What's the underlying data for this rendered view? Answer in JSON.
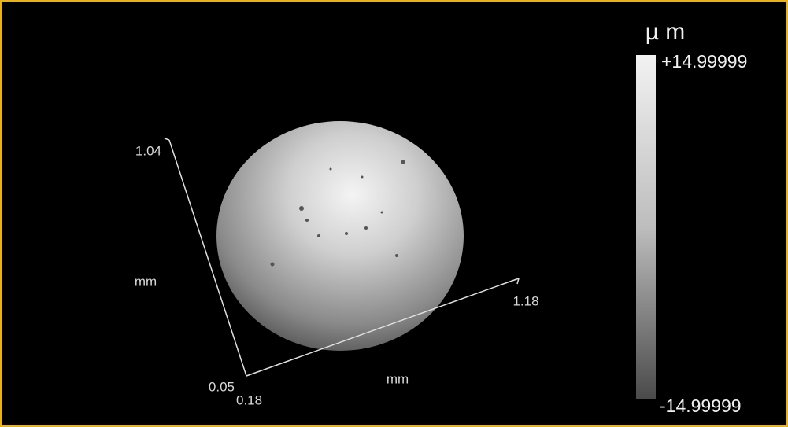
{
  "view": {
    "y_axis": {
      "max_label": "1.04",
      "unit": "mm",
      "min_label": "0.05"
    },
    "x_axis": {
      "min_label": "0.18",
      "unit": "mm",
      "max_label": "1.18"
    },
    "color_scale": {
      "unit": "µ m",
      "max_label": "+14.99999",
      "min_label": "-14.99999"
    }
  }
}
